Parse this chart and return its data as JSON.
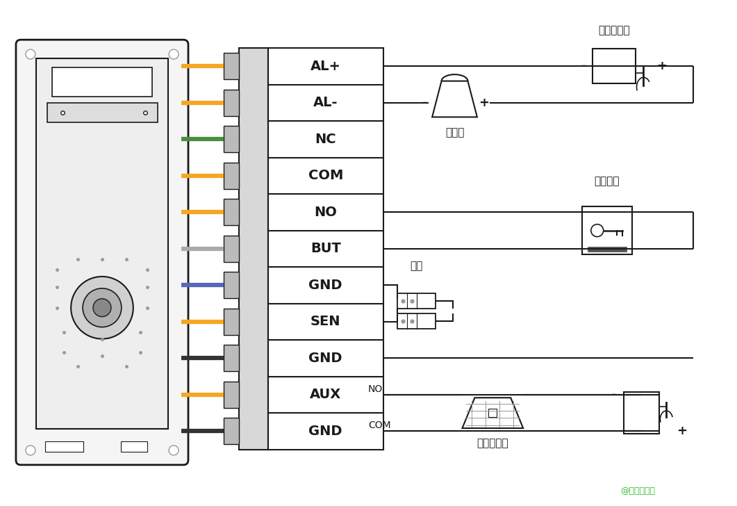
{
  "bg_color": "#ffffff",
  "terminal_labels": [
    "AL+",
    "AL-",
    "NC",
    "COM",
    "NO",
    "BUT",
    "GND",
    "SEN",
    "GND",
    "AUX",
    "GND"
  ],
  "wire_colors_left": [
    "#f5a623",
    "#f5a623",
    "#4a8f3f",
    "#f5a623",
    "#f5a623",
    "#aaaaaa",
    "#5566bb",
    "#f5a623",
    "#333333",
    "#f5a623",
    "#333333"
  ],
  "label_alarm_power": "报警器电源",
  "label_alarm": "报警器",
  "label_exit_switch": "出门开关",
  "label_door_sensor": "门磁",
  "label_smoke": "烟感探测器",
  "label_watermark": "@张电智能网",
  "label_watermark2": "张电智能网",
  "fig_width": 10.61,
  "fig_height": 7.28,
  "dpi": 100
}
